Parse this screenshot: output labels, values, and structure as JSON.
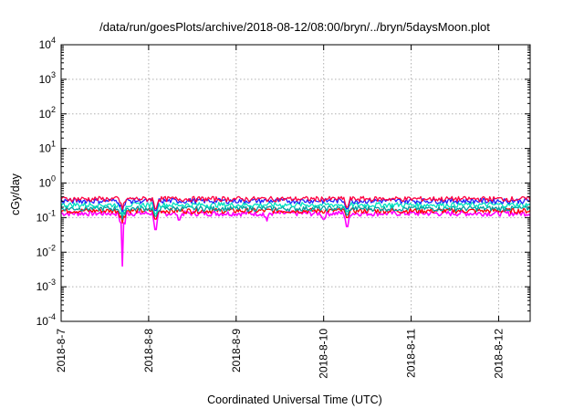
{
  "chart_data": {
    "type": "line",
    "title": "/data/run/goesPlots/archive/2018-08-12/08:00/bryn/../bryn/5daysMoon.plot",
    "xlabel": "Coordinated Universal Time (UTC)",
    "ylabel": "cGy/day",
    "yscale": "log",
    "ylim": [
      0.0001,
      10000
    ],
    "xlim": [
      0,
      5.36
    ],
    "grid": true,
    "x_ticks": [
      {
        "value": 0,
        "label": "2018-8-7"
      },
      {
        "value": 1,
        "label": "2018-8-8"
      },
      {
        "value": 2,
        "label": "2018-8-9"
      },
      {
        "value": 3,
        "label": "2018-8-10"
      },
      {
        "value": 4,
        "label": "2018-8-11"
      },
      {
        "value": 5,
        "label": "2018-8-12"
      }
    ],
    "y_ticks": [
      {
        "value": 0.0001,
        "base": "10",
        "exp": "-4"
      },
      {
        "value": 0.001,
        "base": "10",
        "exp": "-3"
      },
      {
        "value": 0.01,
        "base": "10",
        "exp": "-2"
      },
      {
        "value": 0.1,
        "base": "10",
        "exp": "-1"
      },
      {
        "value": 1,
        "base": "10",
        "exp": "0"
      },
      {
        "value": 10,
        "base": "10",
        "exp": "1"
      },
      {
        "value": 100,
        "base": "10",
        "exp": "2"
      },
      {
        "value": 1000,
        "base": "10",
        "exp": "3"
      },
      {
        "value": 10000,
        "base": "10",
        "exp": "4"
      }
    ],
    "series": [
      {
        "color": "#ff00ff",
        "baseline": 0.13,
        "dips": [
          [
            0.7,
            0.004
          ],
          [
            1.08,
            0.045
          ],
          [
            1.35,
            0.085
          ],
          [
            2.35,
            0.08
          ],
          [
            3.0,
            0.09
          ],
          [
            3.27,
            0.055
          ]
        ]
      },
      {
        "color": "#ff0000",
        "baseline": 0.155,
        "dips": [
          [
            0.7,
            0.07
          ],
          [
            1.08,
            0.09
          ],
          [
            3.27,
            0.1
          ]
        ]
      },
      {
        "color": "#00a0a0",
        "baseline": 0.18,
        "dips": [
          [
            0.7,
            0.09
          ],
          [
            1.08,
            0.11
          ],
          [
            3.27,
            0.12
          ]
        ]
      },
      {
        "color": "#00e0c0",
        "baseline": 0.23,
        "dips": [
          [
            0.7,
            0.12
          ],
          [
            1.08,
            0.13
          ],
          [
            3.27,
            0.15
          ]
        ]
      },
      {
        "color": "#2020ff",
        "baseline": 0.3,
        "dips": [
          [
            0.7,
            0.15
          ],
          [
            1.08,
            0.16
          ],
          [
            3.27,
            0.18
          ]
        ]
      },
      {
        "color": "#ff0040",
        "baseline": 0.34,
        "dips": [
          [
            0.7,
            0.17
          ],
          [
            1.08,
            0.18
          ],
          [
            3.27,
            0.2
          ]
        ]
      }
    ]
  }
}
